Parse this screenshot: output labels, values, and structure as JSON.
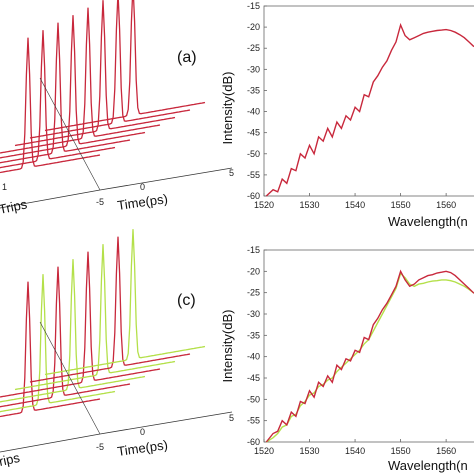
{
  "colors": {
    "red": "#c8283c",
    "yellow": "#b4e04a",
    "axis": "#333333",
    "spine": "#666666"
  },
  "chart_data": [
    {
      "type": "line",
      "panel_label": "(a)",
      "xlabel": "Time(ps)",
      "ylabel_partial": "Trips",
      "x_ticks": [
        "-5",
        "0",
        "5"
      ],
      "series": [
        {
          "color": "#c8283c",
          "peak_count": 8
        }
      ]
    },
    {
      "type": "line",
      "xlabel": "Wavelength(n",
      "ylabel": "Intensity(dB)",
      "xlim": [
        1520,
        1567
      ],
      "ylim": [
        -60,
        -15
      ],
      "x_ticks": [
        "1520",
        "1530",
        "1540",
        "1550",
        "1560"
      ],
      "y_ticks": [
        "-15",
        "-20",
        "-25",
        "-30",
        "-35",
        "-40",
        "-45",
        "-50",
        "-55",
        "-60"
      ],
      "series": [
        {
          "color": "#c8283c",
          "x": [
            1520.5,
            1522,
            1523,
            1524,
            1525,
            1526,
            1527,
            1528,
            1529,
            1530,
            1531,
            1532,
            1533,
            1534,
            1535,
            1536,
            1537,
            1538,
            1539,
            1540,
            1541,
            1542,
            1543,
            1544,
            1545,
            1546,
            1547,
            1548,
            1549,
            1550,
            1551,
            1552,
            1553,
            1554,
            1555,
            1556,
            1557,
            1558,
            1559,
            1560,
            1561,
            1562,
            1563,
            1564,
            1565,
            1566,
            1567
          ],
          "y": [
            -60,
            -58.5,
            -59,
            -56,
            -57,
            -53.5,
            -54,
            -50,
            -51,
            -48,
            -50,
            -46,
            -47,
            -44,
            -46,
            -42.5,
            -44,
            -41,
            -42,
            -39,
            -40,
            -36,
            -36.5,
            -33,
            -31.5,
            -29.5,
            -28,
            -25.5,
            -23.5,
            -19.5,
            -22,
            -23,
            -22.5,
            -22,
            -21.5,
            -21.2,
            -21,
            -20.8,
            -20.7,
            -20.6,
            -20.8,
            -21.2,
            -21.8,
            -22.5,
            -23.5,
            -24.5,
            -25
          ]
        }
      ]
    },
    {
      "type": "line",
      "panel_label": "(c)",
      "xlabel": "Time(ps)",
      "ylabel_partial": "rips",
      "x_ticks": [
        "-5",
        "0",
        "5"
      ],
      "series": [
        {
          "color": "#c8283c",
          "peak_count": 8
        },
        {
          "color": "#b4e04a",
          "peak_count": 8
        }
      ]
    },
    {
      "type": "line",
      "xlabel": "Wavelength(n",
      "ylabel": "Intensity(dB)",
      "xlim": [
        1520,
        1567
      ],
      "ylim": [
        -60,
        -15
      ],
      "x_ticks": [
        "1520",
        "1530",
        "1540",
        "1550",
        "1560"
      ],
      "y_ticks": [
        "-15",
        "-20",
        "-25",
        "-30",
        "-35",
        "-40",
        "-45",
        "-50",
        "-55",
        "-60"
      ],
      "series": [
        {
          "color": "#c8283c",
          "x": [
            1520.5,
            1522,
            1523,
            1524,
            1525,
            1526,
            1527,
            1528,
            1529,
            1530,
            1531,
            1532,
            1533,
            1534,
            1535,
            1536,
            1537,
            1538,
            1539,
            1540,
            1541,
            1542,
            1543,
            1544,
            1545,
            1546,
            1547,
            1548,
            1549,
            1550,
            1551,
            1552,
            1553,
            1554,
            1555,
            1556,
            1557,
            1558,
            1559,
            1560,
            1561,
            1562,
            1563,
            1564,
            1565,
            1566,
            1567
          ],
          "y": [
            -60,
            -58,
            -57.5,
            -55,
            -56,
            -53,
            -54,
            -50.5,
            -51,
            -48,
            -49.5,
            -46,
            -47,
            -44.5,
            -46,
            -42,
            -43,
            -40.5,
            -41,
            -38.5,
            -39,
            -35.5,
            -36,
            -32.5,
            -31,
            -29,
            -27.5,
            -25.5,
            -23.5,
            -20,
            -22,
            -23.5,
            -23,
            -22,
            -21.5,
            -21,
            -20.8,
            -20.4,
            -20.2,
            -20,
            -20.3,
            -21,
            -22,
            -23,
            -24,
            -25,
            -25.5
          ]
        },
        {
          "color": "#b4e04a",
          "x": [
            1520.5,
            1522,
            1523,
            1524,
            1525,
            1526,
            1527,
            1528,
            1529,
            1530,
            1531,
            1532,
            1533,
            1534,
            1535,
            1536,
            1537,
            1538,
            1539,
            1540,
            1541,
            1542,
            1543,
            1544,
            1545,
            1546,
            1547,
            1548,
            1549,
            1550,
            1551,
            1552,
            1553,
            1554,
            1555,
            1556,
            1557,
            1558,
            1559,
            1560,
            1561,
            1562,
            1563,
            1564,
            1565,
            1566,
            1567
          ],
          "y": [
            -60,
            -59,
            -58,
            -56.5,
            -56,
            -54,
            -53.5,
            -51.5,
            -50.5,
            -49,
            -48.5,
            -47,
            -46.5,
            -45.5,
            -45,
            -43.5,
            -42.5,
            -41.5,
            -40.5,
            -39.5,
            -38.5,
            -37,
            -36,
            -34,
            -32,
            -30,
            -28,
            -26,
            -24,
            -20.5,
            -21.5,
            -23,
            -23.5,
            -23,
            -22.8,
            -22.5,
            -22.3,
            -22.2,
            -22,
            -22,
            -22.2,
            -22.5,
            -23,
            -23.5,
            -24.2,
            -25,
            -25.5
          ]
        }
      ]
    }
  ]
}
